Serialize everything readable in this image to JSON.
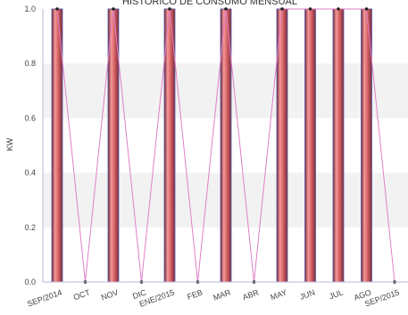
{
  "chart_data": {
    "type": "bar",
    "title": "HISTORICO DE CONSUMO MENSUAL",
    "ylabel": "KW",
    "xlabel": "",
    "ylim": [
      0,
      1.0
    ],
    "yticks": [
      "0.0",
      "0.2",
      "0.4",
      "0.6",
      "0.8",
      "1.0"
    ],
    "categories": [
      "SEP/2014",
      "OCT",
      "NOV",
      "DIC",
      "ENE/2015",
      "FEB",
      "MAR",
      "ABR",
      "MAY",
      "JUN",
      "JUL",
      "AGO",
      "SEP/2015"
    ],
    "values": [
      1,
      0,
      1,
      0,
      1,
      0,
      1,
      0,
      1,
      1,
      1,
      1,
      0
    ],
    "line_values": [
      1,
      0,
      1,
      0,
      1,
      0,
      1,
      0,
      1,
      1,
      1,
      1,
      0
    ],
    "colors": {
      "bar_light": "#f28a8a",
      "bar_dark": "#7a2b3a",
      "bar_edge": "#5a5aa8",
      "line": "#e080c8",
      "band": "#f2f2f2",
      "axis": "#b8b8d8"
    }
  }
}
